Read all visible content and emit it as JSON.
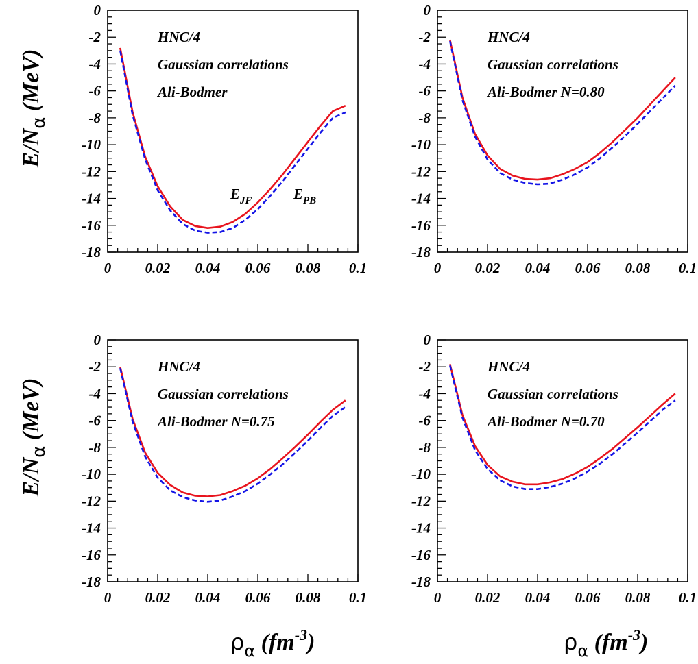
{
  "colors": {
    "jf": "#e8141e",
    "pb": "#1414e6",
    "axis": "#000000"
  },
  "axis_labels": {
    "y_main": "E/N",
    "y_sub": "α",
    "y_unit": " (MeV)",
    "x_greek": "ρ",
    "x_sub": "α",
    "x_unit": " (fm",
    "x_sup": "-3",
    "x_close": ")"
  },
  "curve_labels": {
    "jf_main": "E",
    "jf_sub": "JF",
    "pb_main": "E",
    "pb_sub": "PB"
  },
  "chart_data": [
    {
      "type": "line",
      "title": "",
      "annotations": [
        "HNC/4",
        "Gaussian correlations",
        "Ali-Bodmer"
      ],
      "xlabel": "",
      "ylabel": "E/Nα (MeV)",
      "xlim": [
        0,
        0.1
      ],
      "ylim": [
        -18,
        0
      ],
      "x_ticks": [
        "0",
        "0.02",
        "0.04",
        "0.06",
        "0.08",
        "0.1"
      ],
      "y_ticks": [
        "0",
        "-2",
        "-4",
        "-6",
        "-8",
        "-10",
        "-12",
        "-14",
        "-16",
        "-18"
      ],
      "series": [
        {
          "name": "E_JF",
          "style": "solid",
          "color": "red",
          "x": [
            0.005,
            0.01,
            0.015,
            0.02,
            0.025,
            0.03,
            0.035,
            0.04,
            0.045,
            0.05,
            0.055,
            0.06,
            0.065,
            0.07,
            0.075,
            0.08,
            0.085,
            0.09,
            0.095
          ],
          "y": [
            -2.8,
            -7.6,
            -10.9,
            -13.1,
            -14.6,
            -15.6,
            -16.05,
            -16.2,
            -16.1,
            -15.75,
            -15.15,
            -14.3,
            -13.3,
            -12.2,
            -11.0,
            -9.8,
            -8.6,
            -7.5,
            -7.1
          ]
        },
        {
          "name": "E_PB",
          "style": "dashed",
          "color": "blue",
          "x": [
            0.005,
            0.01,
            0.015,
            0.02,
            0.025,
            0.03,
            0.035,
            0.04,
            0.045,
            0.05,
            0.055,
            0.06,
            0.065,
            0.07,
            0.075,
            0.08,
            0.085,
            0.09,
            0.095
          ],
          "y": [
            -3.0,
            -7.8,
            -11.1,
            -13.4,
            -14.9,
            -15.9,
            -16.4,
            -16.55,
            -16.5,
            -16.2,
            -15.6,
            -14.8,
            -13.8,
            -12.7,
            -11.5,
            -10.3,
            -9.1,
            -8.0,
            -7.6
          ]
        }
      ]
    },
    {
      "type": "line",
      "title": "",
      "annotations": [
        "HNC/4",
        "Gaussian correlations",
        "Ali-Bodmer N=0.80"
      ],
      "xlabel": "",
      "ylabel": "",
      "xlim": [
        0,
        0.1
      ],
      "ylim": [
        -18,
        0
      ],
      "x_ticks": [
        "0",
        "0.02",
        "0.04",
        "0.06",
        "0.08",
        "0.1"
      ],
      "y_ticks": [
        "0",
        "-2",
        "-4",
        "-6",
        "-8",
        "-10",
        "-12",
        "-14",
        "-16",
        "-18"
      ],
      "series": [
        {
          "name": "E_JF",
          "style": "solid",
          "color": "red",
          "x": [
            0.005,
            0.01,
            0.015,
            0.02,
            0.025,
            0.03,
            0.035,
            0.04,
            0.045,
            0.05,
            0.055,
            0.06,
            0.065,
            0.07,
            0.075,
            0.08,
            0.085,
            0.09,
            0.095
          ],
          "y": [
            -2.2,
            -6.5,
            -9.2,
            -10.8,
            -11.8,
            -12.3,
            -12.55,
            -12.6,
            -12.5,
            -12.2,
            -11.8,
            -11.3,
            -10.6,
            -9.8,
            -8.9,
            -8.0,
            -7.0,
            -6.0,
            -5.0
          ]
        },
        {
          "name": "E_PB",
          "style": "dashed",
          "color": "blue",
          "x": [
            0.005,
            0.01,
            0.015,
            0.02,
            0.025,
            0.03,
            0.035,
            0.04,
            0.045,
            0.05,
            0.055,
            0.06,
            0.065,
            0.07,
            0.075,
            0.08,
            0.085,
            0.09,
            0.095
          ],
          "y": [
            -2.3,
            -6.7,
            -9.4,
            -11.1,
            -12.1,
            -12.6,
            -12.85,
            -12.95,
            -12.9,
            -12.6,
            -12.2,
            -11.7,
            -11.0,
            -10.2,
            -9.35,
            -8.45,
            -7.5,
            -6.55,
            -5.6
          ]
        }
      ]
    },
    {
      "type": "line",
      "title": "",
      "annotations": [
        "HNC/4",
        "Gaussian correlations",
        "Ali-Bodmer N=0.75"
      ],
      "xlabel": "ρα (fm-3)",
      "ylabel": "E/Nα (MeV)",
      "xlim": [
        0,
        0.1
      ],
      "ylim": [
        -18,
        0
      ],
      "x_ticks": [
        "0",
        "0.02",
        "0.04",
        "0.06",
        "0.08",
        "0.1"
      ],
      "y_ticks": [
        "0",
        "-2",
        "-4",
        "-6",
        "-8",
        "-10",
        "-12",
        "-14",
        "-16",
        "-18"
      ],
      "series": [
        {
          "name": "E_JF",
          "style": "solid",
          "color": "red",
          "x": [
            0.005,
            0.01,
            0.015,
            0.02,
            0.025,
            0.03,
            0.035,
            0.04,
            0.045,
            0.05,
            0.055,
            0.06,
            0.065,
            0.07,
            0.075,
            0.08,
            0.085,
            0.09,
            0.095
          ],
          "y": [
            -2.0,
            -5.9,
            -8.4,
            -9.9,
            -10.8,
            -11.35,
            -11.6,
            -11.65,
            -11.55,
            -11.25,
            -10.85,
            -10.3,
            -9.6,
            -8.8,
            -7.95,
            -7.05,
            -6.1,
            -5.2,
            -4.5
          ]
        },
        {
          "name": "E_PB",
          "style": "dashed",
          "color": "blue",
          "x": [
            0.005,
            0.01,
            0.015,
            0.02,
            0.025,
            0.03,
            0.035,
            0.04,
            0.045,
            0.05,
            0.055,
            0.06,
            0.065,
            0.07,
            0.075,
            0.08,
            0.085,
            0.09,
            0.095
          ],
          "y": [
            -2.1,
            -6.1,
            -8.7,
            -10.25,
            -11.2,
            -11.7,
            -11.95,
            -12.05,
            -11.95,
            -11.65,
            -11.25,
            -10.7,
            -10.0,
            -9.25,
            -8.4,
            -7.5,
            -6.55,
            -5.65,
            -5.0
          ]
        }
      ]
    },
    {
      "type": "line",
      "title": "",
      "annotations": [
        "HNC/4",
        "Gaussian correlations",
        "Ali-Bodmer N=0.70"
      ],
      "xlabel": "ρα (fm-3)",
      "ylabel": "",
      "xlim": [
        0,
        0.1
      ],
      "ylim": [
        -18,
        0
      ],
      "x_ticks": [
        "0",
        "0.02",
        "0.04",
        "0.06",
        "0.08",
        "0.1"
      ],
      "y_ticks": [
        "0",
        "-2",
        "-4",
        "-6",
        "-8",
        "-10",
        "-12",
        "-14",
        "-16",
        "-18"
      ],
      "series": [
        {
          "name": "E_JF",
          "style": "solid",
          "color": "red",
          "x": [
            0.005,
            0.01,
            0.015,
            0.02,
            0.025,
            0.03,
            0.035,
            0.04,
            0.045,
            0.05,
            0.055,
            0.06,
            0.065,
            0.07,
            0.075,
            0.08,
            0.085,
            0.09,
            0.095
          ],
          "y": [
            -1.8,
            -5.6,
            -7.9,
            -9.3,
            -10.15,
            -10.55,
            -10.75,
            -10.75,
            -10.6,
            -10.35,
            -9.95,
            -9.45,
            -8.8,
            -8.1,
            -7.3,
            -6.5,
            -5.65,
            -4.8,
            -4.0
          ]
        },
        {
          "name": "E_PB",
          "style": "dashed",
          "color": "blue",
          "x": [
            0.005,
            0.01,
            0.015,
            0.02,
            0.025,
            0.03,
            0.035,
            0.04,
            0.045,
            0.05,
            0.055,
            0.06,
            0.065,
            0.07,
            0.075,
            0.08,
            0.085,
            0.09,
            0.095
          ],
          "y": [
            -1.9,
            -5.8,
            -8.2,
            -9.6,
            -10.45,
            -10.9,
            -11.1,
            -11.1,
            -10.95,
            -10.7,
            -10.3,
            -9.8,
            -9.2,
            -8.5,
            -7.7,
            -6.9,
            -6.05,
            -5.2,
            -4.5
          ]
        }
      ]
    }
  ]
}
